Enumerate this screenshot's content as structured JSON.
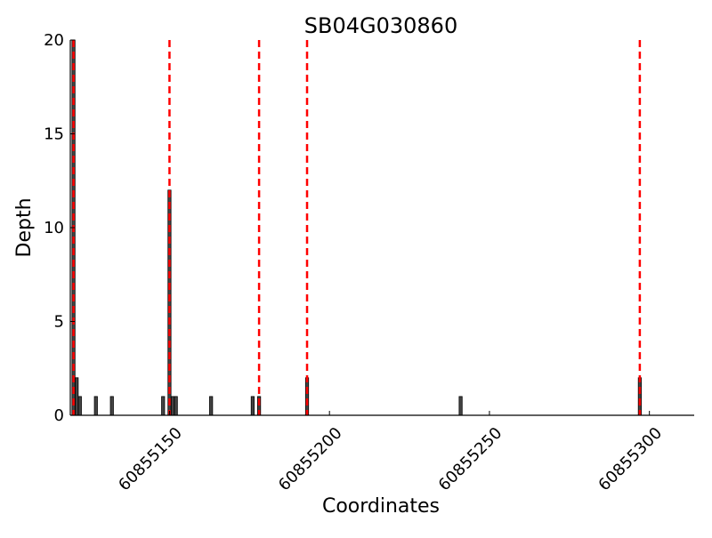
{
  "chart_data": {
    "type": "bar",
    "title": "SB04G030860",
    "xlabel": "Coordinates",
    "ylabel": "Depth",
    "xlim": [
      60855119,
      60855314
    ],
    "ylim": [
      0,
      20
    ],
    "x_ticks": [
      60855150,
      60855200,
      60855250,
      60855300
    ],
    "x_tick_labels": [
      "60855150",
      "60855200",
      "60855250",
      "60855300"
    ],
    "y_ticks": [
      0,
      5,
      10,
      15,
      20
    ],
    "y_tick_labels": [
      "0",
      "5",
      "10",
      "15",
      "20"
    ],
    "grid": false,
    "legend": "none",
    "bar_color": "#444444",
    "bar_edge_color": "#000000",
    "marker_color": "#ff0000",
    "series": [
      {
        "x": [
          60855120,
          60855121,
          60855122,
          60855127,
          60855132,
          60855148,
          60855150,
          60855151,
          60855152,
          60855163,
          60855176,
          60855178,
          60855193,
          60855241,
          60855297
        ],
        "values": [
          20,
          2,
          1,
          1,
          1,
          1,
          12,
          1,
          1,
          1,
          1,
          1,
          2,
          1,
          2
        ]
      }
    ],
    "vertical_lines": [
      60855120,
      60855150,
      60855178,
      60855193,
      60855297
    ]
  }
}
